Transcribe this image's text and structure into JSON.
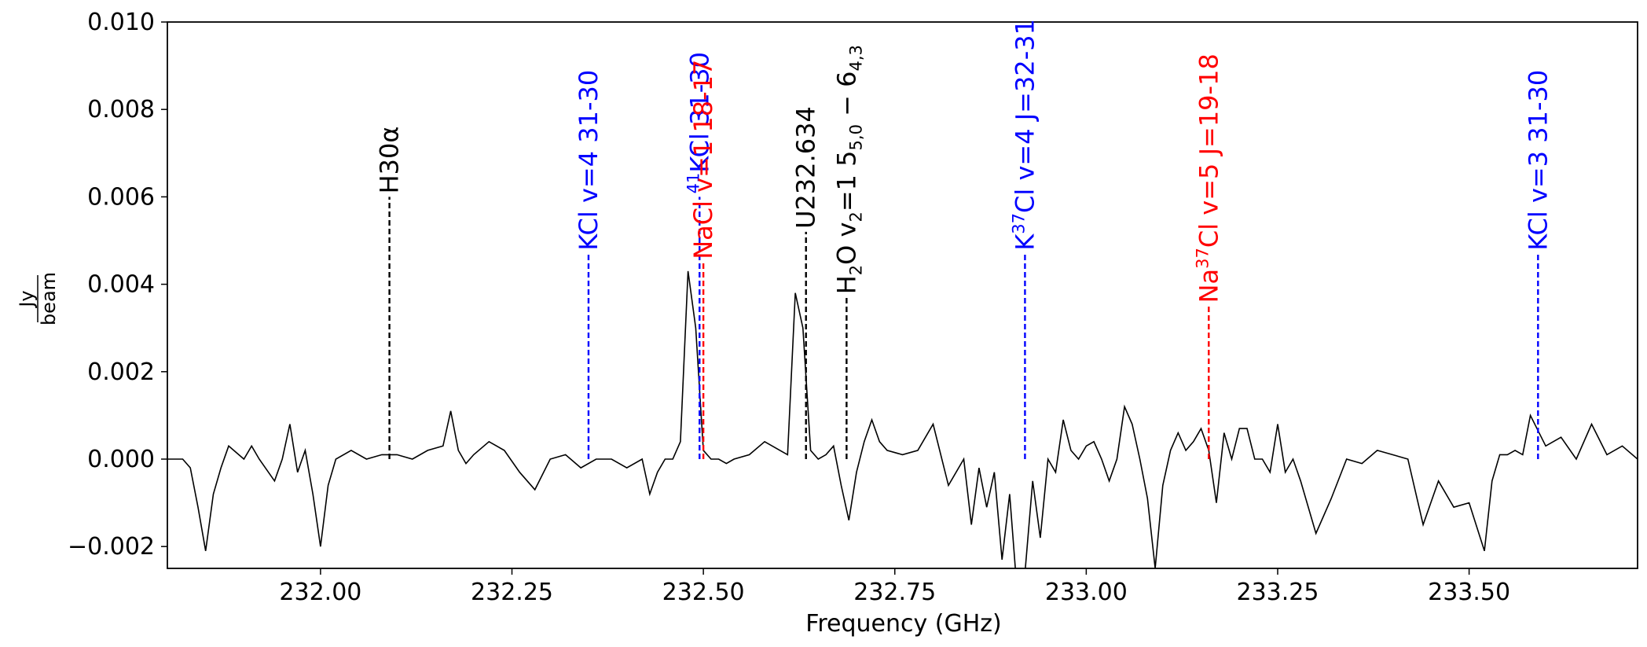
{
  "chart_data": {
    "type": "line",
    "xlabel": "Frequency (GHz)",
    "ylabel": {
      "numerator": "Jy",
      "denominator": "beam"
    },
    "xlim": [
      231.8,
      233.72
    ],
    "ylim": [
      -0.0025,
      0.01
    ],
    "xticks": [
      232.0,
      232.25,
      232.5,
      232.75,
      233.0,
      233.25,
      233.5
    ],
    "xtick_labels": [
      "232.00",
      "232.25",
      "232.50",
      "232.75",
      "233.00",
      "233.25",
      "233.50"
    ],
    "yticks": [
      -0.002,
      0.0,
      0.002,
      0.004,
      0.006,
      0.008,
      0.01
    ],
    "ytick_labels": [
      "−0.002",
      "0.000",
      "0.002",
      "0.004",
      "0.006",
      "0.008",
      "0.010"
    ],
    "grid": false,
    "spectrum": {
      "color": "#000000",
      "x": [
        231.8,
        231.82,
        231.83,
        231.84,
        231.85,
        231.86,
        231.87,
        231.88,
        231.9,
        231.91,
        231.92,
        231.94,
        231.95,
        231.96,
        231.97,
        231.98,
        231.99,
        232.0,
        232.01,
        232.02,
        232.04,
        232.06,
        232.08,
        232.1,
        232.12,
        232.14,
        232.16,
        232.17,
        232.18,
        232.19,
        232.2,
        232.22,
        232.24,
        232.26,
        232.28,
        232.3,
        232.32,
        232.34,
        232.36,
        232.38,
        232.4,
        232.42,
        232.43,
        232.44,
        232.45,
        232.46,
        232.47,
        232.48,
        232.49,
        232.5,
        232.51,
        232.52,
        232.53,
        232.54,
        232.56,
        232.58,
        232.6,
        232.61,
        232.62,
        232.63,
        232.64,
        232.65,
        232.66,
        232.67,
        232.68,
        232.69,
        232.7,
        232.71,
        232.72,
        232.73,
        232.74,
        232.76,
        232.78,
        232.8,
        232.82,
        232.84,
        232.85,
        232.86,
        232.87,
        232.88,
        232.89,
        232.9,
        232.91,
        232.92,
        232.93,
        232.94,
        232.95,
        232.96,
        232.97,
        232.98,
        232.99,
        233.0,
        233.01,
        233.02,
        233.03,
        233.04,
        233.05,
        233.06,
        233.07,
        233.08,
        233.09,
        233.1,
        233.11,
        233.12,
        233.13,
        233.14,
        233.15,
        233.16,
        233.17,
        233.18,
        233.19,
        233.2,
        233.21,
        233.22,
        233.23,
        233.24,
        233.25,
        233.26,
        233.27,
        233.28,
        233.3,
        233.32,
        233.34,
        233.36,
        233.38,
        233.4,
        233.42,
        233.44,
        233.46,
        233.48,
        233.5,
        233.52,
        233.53,
        233.54,
        233.55,
        233.56,
        233.57,
        233.58,
        233.6,
        233.62,
        233.64,
        233.66,
        233.68,
        233.7,
        233.72
      ],
      "y": [
        0.0,
        0.0,
        -0.0002,
        -0.0011,
        -0.0021,
        -0.0008,
        -0.0002,
        0.0003,
        0.0,
        0.0003,
        0.0,
        -0.0005,
        0.0,
        0.0008,
        -0.0003,
        0.0002,
        -0.0008,
        -0.002,
        -0.0006,
        0.0,
        0.0002,
        0.0,
        0.0001,
        0.0001,
        0.0,
        0.0002,
        0.0003,
        0.0011,
        0.0002,
        -0.0001,
        0.0001,
        0.0004,
        0.0002,
        -0.0003,
        -0.0007,
        0.0,
        0.0001,
        -0.0002,
        0.0,
        0.0,
        -0.0002,
        0.0,
        -0.0008,
        -0.0003,
        0.0,
        0.0,
        0.0004,
        0.0043,
        0.003,
        0.0002,
        0.0,
        0.0,
        -0.0001,
        0.0,
        0.0001,
        0.0004,
        0.0002,
        0.0001,
        0.0038,
        0.003,
        0.0002,
        0.0,
        0.0001,
        0.0003,
        -0.0006,
        -0.0014,
        -0.0003,
        0.0004,
        0.0009,
        0.0004,
        0.0002,
        0.0001,
        0.0002,
        0.0008,
        -0.0006,
        0.0,
        -0.0015,
        -0.0002,
        -0.0011,
        -0.0003,
        -0.0023,
        -0.0008,
        -0.0031,
        -0.0026,
        -0.0005,
        -0.0018,
        0.0,
        -0.0003,
        0.0009,
        0.0002,
        0.0,
        0.0003,
        0.0004,
        0.0,
        -0.0005,
        0.0,
        0.0012,
        0.0008,
        0.0,
        -0.0009,
        -0.0025,
        -0.0006,
        0.0002,
        0.0006,
        0.0002,
        0.0004,
        0.0007,
        0.0002,
        -0.001,
        0.0006,
        0.0,
        0.0007,
        0.0007,
        0.0,
        0.0,
        -0.0003,
        0.0008,
        -0.0003,
        0.0,
        -0.0005,
        -0.0017,
        -0.0009,
        0.0,
        -0.0001,
        0.0002,
        0.0001,
        0.0,
        -0.0015,
        -0.0005,
        -0.0011,
        -0.001,
        -0.0021,
        -0.0005,
        0.0001,
        0.0001,
        0.0002,
        0.0001,
        0.001,
        0.0003,
        0.0005,
        0.0,
        0.0008,
        0.0001,
        0.0003,
        0.0
      ]
    },
    "lines": [
      {
        "x": 232.09,
        "y_top": 0.006,
        "color": "#000000",
        "label": "H30α"
      },
      {
        "x": 232.35,
        "y_top": 0.0047,
        "color": "#0000ff",
        "label": "KCl v=4 31-30"
      },
      {
        "x": 232.495,
        "y_top": 0.006,
        "color": "#0000ff",
        "label_prefix_super": "41",
        "label": "KCl 31-30"
      },
      {
        "x": 232.5,
        "y_top": 0.0045,
        "color": "#ff0000",
        "label": "NaCl v=1 18-17"
      },
      {
        "x": 232.634,
        "y_top": 0.0052,
        "color": "#000000",
        "label": "U232.634"
      },
      {
        "x": 232.687,
        "y_top": 0.0037,
        "color": "#000000",
        "label_h2o": {
          "a": "H",
          "a_sub": "2",
          "b": "O v",
          "b_sub": "2",
          "c": "=1 5",
          "c_sub": "5,0",
          "d": " − 6",
          "d_sub": "4,3"
        }
      },
      {
        "x": 232.92,
        "y_top": 0.0047,
        "color": "#0000ff",
        "label_k37": {
          "a": "K",
          "sup": "37",
          "b": "Cl v=4 J=32-31"
        }
      },
      {
        "x": 233.16,
        "y_top": 0.0035,
        "color": "#ff0000",
        "label_na37": {
          "a": "Na",
          "sup": "37",
          "b": "Cl v=5 J=19-18"
        }
      },
      {
        "x": 233.59,
        "y_top": 0.0047,
        "color": "#0000ff",
        "label": "KCl v=3 31-30"
      }
    ]
  }
}
